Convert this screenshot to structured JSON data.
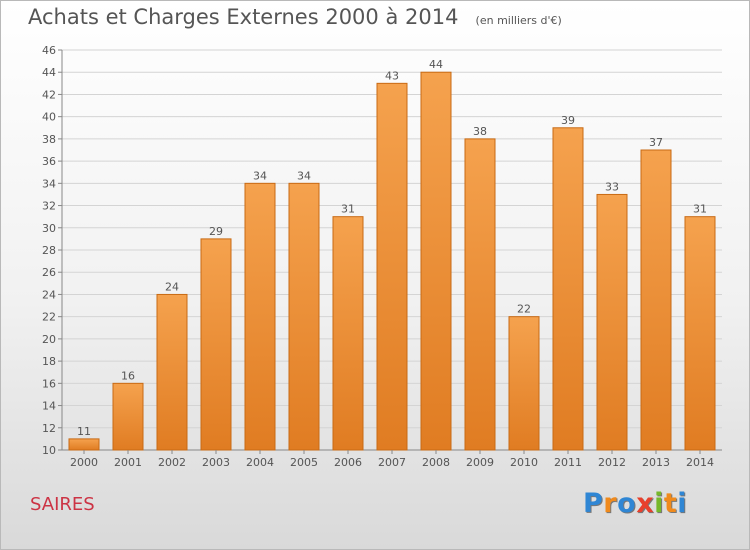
{
  "title": "Achats et Charges Externes 2000 à 2014",
  "unit": "(en milliers d'€)",
  "commune": "SAIRES",
  "logo": {
    "text": "Proxiti",
    "letters": [
      {
        "char": "P",
        "color": "#2f86d4"
      },
      {
        "char": "r",
        "color": "#f08a1c"
      },
      {
        "char": "o",
        "color": "#2f86d4"
      },
      {
        "char": "x",
        "color": "#e8402c"
      },
      {
        "char": "i",
        "color": "#76b82a"
      },
      {
        "char": "t",
        "color": "#f08a1c"
      },
      {
        "char": "i",
        "color": "#2f86d4"
      }
    ]
  },
  "colors": {
    "bar_light": "#f5a24e",
    "bar_dark": "#e07c22",
    "bar_stroke": "#c86a14",
    "grid": "#d4d4d4",
    "axis_text": "#555555"
  },
  "chart_data": {
    "type": "bar",
    "title": "Achats et Charges Externes 2000 à 2014",
    "subtitle": "(en milliers d'€)",
    "categories": [
      "2000",
      "2001",
      "2002",
      "2003",
      "2004",
      "2005",
      "2006",
      "2007",
      "2008",
      "2009",
      "2010",
      "2011",
      "2012",
      "2013",
      "2014"
    ],
    "values": [
      11,
      16,
      24,
      29,
      34,
      34,
      31,
      43,
      44,
      38,
      22,
      39,
      33,
      37,
      31
    ],
    "ylim": [
      10,
      46
    ],
    "yticks": [
      10,
      12,
      14,
      16,
      18,
      20,
      22,
      24,
      26,
      28,
      30,
      32,
      34,
      36,
      38,
      40,
      42,
      44,
      46
    ],
    "grid": true,
    "data_labels": true
  }
}
